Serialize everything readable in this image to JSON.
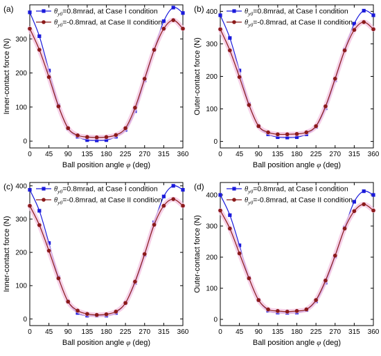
{
  "chart_data": [
    {
      "panel_label": "(a)",
      "type": "line",
      "xlabel_text": "Ball position angle ",
      "xlabel_symbol": "φ",
      "xlabel_unit": " (deg)",
      "ylabel": "Inner-contact force (N)",
      "xlim": [
        0,
        360
      ],
      "ylim": [
        -20,
        400
      ],
      "x_ticks": [
        0,
        45,
        90,
        135,
        180,
        225,
        270,
        315,
        360
      ],
      "y_ticks": [
        0,
        100,
        200,
        300
      ],
      "x_tick_labels": [
        "0",
        "45",
        "90",
        "135",
        "180",
        "225",
        "270",
        "315",
        "360"
      ],
      "y_tick_labels": [
        "0",
        "100",
        "200",
        "300"
      ],
      "x": [
        0,
        22.5,
        45,
        67.5,
        90,
        112.5,
        135,
        157.5,
        180,
        202.5,
        225,
        247.5,
        270,
        292.5,
        315,
        337.5,
        360
      ],
      "series": [
        {
          "legend_symbol": "θ",
          "legend_subscript": "y0",
          "legend_text": "=0.8mrad, at Case I condition",
          "color": "#1a1adb",
          "marker": "square",
          "values": [
            378,
            308,
            207,
            105,
            37,
            13,
            3,
            2,
            3,
            13,
            33,
            88,
            178,
            268,
            352,
            392,
            376
          ]
        },
        {
          "legend_symbol": "θ",
          "legend_subscript": "y0",
          "legend_text": "=-0.8mrad, at Case II condition",
          "color": "#8b1a1a",
          "marker": "circle",
          "values": [
            330,
            268,
            188,
            102,
            38,
            17,
            12,
            11,
            12,
            18,
            38,
            98,
            183,
            268,
            330,
            355,
            330
          ]
        }
      ],
      "grid": false,
      "legend_position": "top"
    },
    {
      "panel_label": "(b)",
      "type": "line",
      "xlabel_text": "Ball position angle ",
      "xlabel_symbol": "φ",
      "xlabel_unit": " (deg)",
      "ylabel": "Outer-contact force (N)",
      "xlim": [
        0,
        360
      ],
      "ylim": [
        -20,
        420
      ],
      "x_ticks": [
        0,
        45,
        90,
        135,
        180,
        225,
        270,
        315,
        360
      ],
      "y_ticks": [
        0,
        100,
        200,
        300,
        400
      ],
      "x_tick_labels": [
        "0",
        "45",
        "90",
        "135",
        "180",
        "225",
        "270",
        "315",
        "360"
      ],
      "y_tick_labels": [
        "0",
        "100",
        "200",
        "300",
        "400"
      ],
      "x": [
        0,
        22.5,
        45,
        67.5,
        90,
        112.5,
        135,
        157.5,
        180,
        202.5,
        225,
        247.5,
        270,
        292.5,
        315,
        337.5,
        360
      ],
      "series": [
        {
          "legend_symbol": "θ",
          "legend_subscript": "y0",
          "legend_text": "=0.8mrad, at Case I condition",
          "color": "#1a1adb",
          "marker": "square",
          "values": [
            388,
            318,
            218,
            115,
            47,
            22,
            13,
            12,
            13,
            22,
            45,
            102,
            188,
            282,
            362,
            402,
            388
          ]
        },
        {
          "legend_symbol": "θ",
          "legend_subscript": "y0",
          "legend_text": "=-0.8mrad, at Case II condition",
          "color": "#8b1a1a",
          "marker": "circle",
          "values": [
            345,
            280,
            198,
            112,
            47,
            28,
            22,
            22,
            23,
            28,
            47,
            108,
            193,
            280,
            343,
            367,
            345
          ]
        }
      ],
      "grid": false,
      "legend_position": "top"
    },
    {
      "panel_label": "(c)",
      "type": "line",
      "xlabel_text": "Ball position angle ",
      "xlabel_symbol": "φ",
      "xlabel_unit": " (deg)",
      "ylabel": "Inner-contact force (N)",
      "xlim": [
        0,
        360
      ],
      "ylim": [
        -20,
        410
      ],
      "x_ticks": [
        0,
        45,
        90,
        135,
        180,
        225,
        270,
        315,
        360
      ],
      "y_ticks": [
        0,
        100,
        200,
        300,
        400
      ],
      "x_tick_labels": [
        "0",
        "45",
        "90",
        "135",
        "180",
        "225",
        "270",
        "315",
        "360"
      ],
      "y_tick_labels": [
        "0",
        "100",
        "200",
        "300",
        "400"
      ],
      "x": [
        0,
        22.5,
        45,
        67.5,
        90,
        112.5,
        135,
        157.5,
        180,
        202.5,
        225,
        247.5,
        270,
        292.5,
        315,
        337.5,
        360
      ],
      "series": [
        {
          "legend_symbol": "θ",
          "legend_subscript": "y0",
          "legend_text": "=0.8mrad, at Case I condition",
          "color": "#1a1adb",
          "marker": "square",
          "values": [
            388,
            325,
            228,
            125,
            52,
            18,
            10,
            10,
            10,
            18,
            48,
            108,
            192,
            290,
            368,
            400,
            388
          ]
        },
        {
          "legend_symbol": "θ",
          "legend_subscript": "y0",
          "legend_text": "=-0.8mrad, at Case II condition",
          "color": "#8b1a1a",
          "marker": "circle",
          "values": [
            340,
            282,
            205,
            122,
            52,
            25,
            15,
            12,
            14,
            22,
            48,
            112,
            195,
            283,
            340,
            360,
            340
          ]
        }
      ],
      "grid": false,
      "legend_position": "top"
    },
    {
      "panel_label": "(d)",
      "type": "line",
      "xlabel_text": "Ball position angle ",
      "xlabel_symbol": "φ",
      "xlabel_unit": " (deg)",
      "ylabel": "Outer-contact force (N)",
      "xlim": [
        0,
        360
      ],
      "ylim": [
        -20,
        440
      ],
      "x_ticks": [
        0,
        45,
        90,
        135,
        180,
        225,
        270,
        315,
        360
      ],
      "y_ticks": [
        0,
        100,
        200,
        300,
        400
      ],
      "x_tick_labels": [
        "0",
        "45",
        "90",
        "135",
        "180",
        "225",
        "270",
        "315",
        "360"
      ],
      "y_tick_labels": [
        "0",
        "100",
        "200",
        "300",
        "400"
      ],
      "x": [
        0,
        22.5,
        45,
        67.5,
        90,
        112.5,
        135,
        157.5,
        180,
        202.5,
        225,
        247.5,
        270,
        292.5,
        315,
        337.5,
        360
      ],
      "series": [
        {
          "legend_symbol": "θ",
          "legend_subscript": "y0",
          "legend_text": "=0.8mrad, at Case I condition",
          "color": "#1a1adb",
          "marker": "square",
          "values": [
            400,
            335,
            238,
            133,
            62,
            28,
            22,
            21,
            22,
            30,
            58,
            118,
            202,
            295,
            378,
            412,
            400
          ]
        },
        {
          "legend_symbol": "θ",
          "legend_subscript": "y0",
          "legend_text": "=-0.8mrad, at Case II condition",
          "color": "#8b1a1a",
          "marker": "circle",
          "values": [
            350,
            292,
            212,
            132,
            62,
            32,
            27,
            25,
            27,
            32,
            62,
            125,
            205,
            292,
            348,
            370,
            350
          ]
        }
      ],
      "grid": false,
      "legend_position": "top"
    }
  ]
}
